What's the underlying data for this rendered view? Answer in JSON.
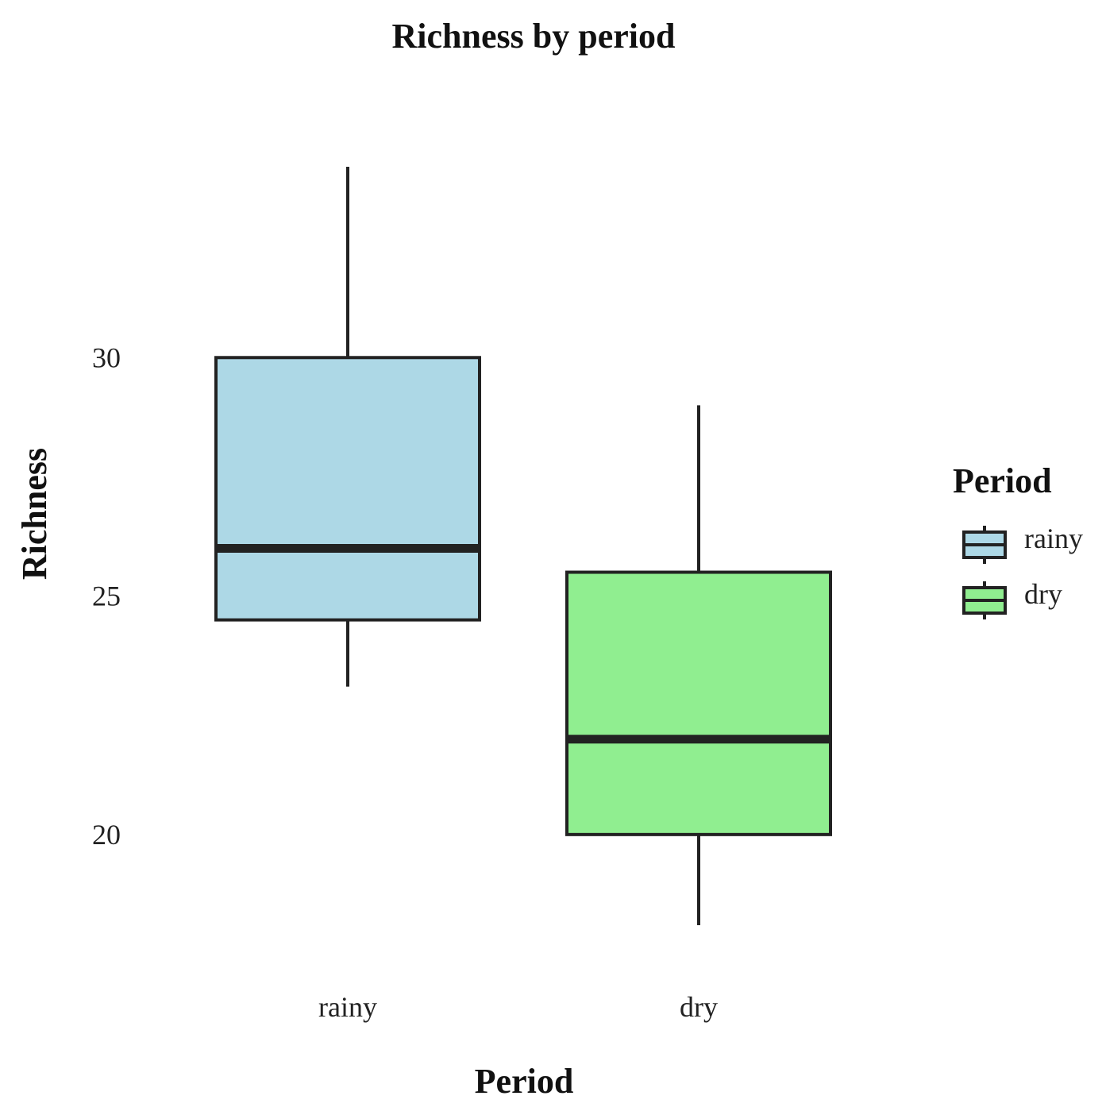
{
  "chart_data": {
    "type": "boxplot",
    "title": "Richness by period",
    "xlabel": "Period",
    "ylabel": "Richness",
    "categories": [
      "rainy",
      "dry"
    ],
    "ylim": [
      17.5,
      34.5
    ],
    "yticks": [
      20,
      25,
      30
    ],
    "grid": false,
    "series": [
      {
        "name": "rainy",
        "min": 23.1,
        "q1": 24.5,
        "median": 26.0,
        "q3": 30.0,
        "max": 34.0,
        "color": "#add8e6"
      },
      {
        "name": "dry",
        "min": 18.1,
        "q1": 20.0,
        "median": 22.0,
        "q3": 25.5,
        "max": 29.0,
        "color": "#90ee90"
      }
    ],
    "legend": {
      "title": "Period",
      "position": "right",
      "entries": [
        "rainy",
        "dry"
      ]
    }
  }
}
